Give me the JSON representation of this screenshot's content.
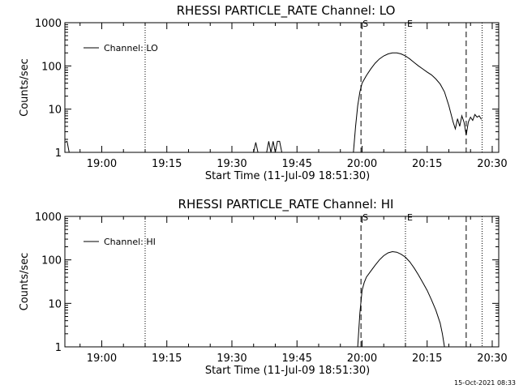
{
  "colors": {
    "background": "#ffffff",
    "foreground": "#000000"
  },
  "chart_data": [
    {
      "type": "line",
      "title": "RHESSI PARTICLE_RATE Channel: LO",
      "xlabel": "Start Time (11-Jul-09 18:51:30)",
      "ylabel": "Counts/sec",
      "yscale": "log",
      "ylim": [
        1,
        1000
      ],
      "x_ticks": [
        "19:00",
        "19:15",
        "19:30",
        "19:45",
        "20:00",
        "20:15",
        "20:30"
      ],
      "y_ticks": [
        "1",
        "10",
        "100",
        "1000"
      ],
      "legend": "Channel: LO",
      "legend_position": "top-left",
      "markers": [
        {
          "label": "S",
          "time": "19:59:45",
          "style": "dashed"
        },
        {
          "label": "E",
          "time": "20:10:00",
          "style": "dotted"
        }
      ],
      "vlines_dashed": [
        "20:24:00"
      ],
      "vlines_dotted": [
        "19:10:00",
        "20:10:00",
        "20:27:40"
      ],
      "series": [
        {
          "name": "Channel: LO",
          "points": [
            [
              "18:51:30",
              1.7
            ],
            [
              "18:52:00",
              1.8
            ],
            [
              "18:52:30",
              1.0
            ],
            [
              "19:35:00",
              1.0
            ],
            [
              "19:35:30",
              1.7
            ],
            [
              "19:36:00",
              1.0
            ],
            [
              "19:38:00",
              1.0
            ],
            [
              "19:38:30",
              1.8
            ],
            [
              "19:39:00",
              1.0
            ],
            [
              "19:39:30",
              1.8
            ],
            [
              "19:40:00",
              1.0
            ],
            [
              "19:40:30",
              1.8
            ],
            [
              "19:41:00",
              1.8
            ],
            [
              "19:41:30",
              1.0
            ],
            [
              "19:58:00",
              1.0
            ],
            [
              "19:58:30",
              4
            ],
            [
              "19:59:00",
              12
            ],
            [
              "19:59:30",
              25
            ],
            [
              "20:00:00",
              40
            ],
            [
              "20:01:00",
              60
            ],
            [
              "20:02:00",
              85
            ],
            [
              "20:03:00",
              115
            ],
            [
              "20:04:00",
              145
            ],
            [
              "20:05:00",
              170
            ],
            [
              "20:06:00",
              190
            ],
            [
              "20:07:00",
              200
            ],
            [
              "20:08:00",
              200
            ],
            [
              "20:09:00",
              190
            ],
            [
              "20:10:00",
              170
            ],
            [
              "20:11:00",
              145
            ],
            [
              "20:12:00",
              120
            ],
            [
              "20:13:00",
              100
            ],
            [
              "20:14:00",
              85
            ],
            [
              "20:15:00",
              72
            ],
            [
              "20:16:00",
              62
            ],
            [
              "20:17:00",
              50
            ],
            [
              "20:18:00",
              38
            ],
            [
              "20:19:00",
              25
            ],
            [
              "20:20:00",
              12
            ],
            [
              "20:21:00",
              5
            ],
            [
              "20:21:30",
              3.5
            ],
            [
              "20:22:00",
              6
            ],
            [
              "20:22:30",
              4
            ],
            [
              "20:23:00",
              7
            ],
            [
              "20:23:30",
              5
            ],
            [
              "20:24:00",
              2.5
            ],
            [
              "20:24:30",
              5
            ],
            [
              "20:25:00",
              6.5
            ],
            [
              "20:25:30",
              5.5
            ],
            [
              "20:26:00",
              7.5
            ],
            [
              "20:26:30",
              6.5
            ],
            [
              "20:27:00",
              7
            ],
            [
              "20:27:30",
              5.8
            ]
          ]
        }
      ]
    },
    {
      "type": "line",
      "title": "RHESSI PARTICLE_RATE Channel: HI",
      "xlabel": "Start Time (11-Jul-09 18:51:30)",
      "ylabel": "Counts/sec",
      "yscale": "log",
      "ylim": [
        1,
        1000
      ],
      "x_ticks": [
        "19:00",
        "19:15",
        "19:30",
        "19:45",
        "20:00",
        "20:15",
        "20:30"
      ],
      "y_ticks": [
        "1",
        "10",
        "100",
        "1000"
      ],
      "legend": "Channel: HI",
      "legend_position": "top-left",
      "markers": [
        {
          "label": "S",
          "time": "19:59:45",
          "style": "dashed"
        },
        {
          "label": "E",
          "time": "20:10:00",
          "style": "dotted"
        }
      ],
      "vlines_dashed": [
        "20:24:00"
      ],
      "vlines_dotted": [
        "19:10:00",
        "20:10:00",
        "20:27:40"
      ],
      "series": [
        {
          "name": "Channel: HI",
          "points": [
            [
              "19:59:00",
              1.0
            ],
            [
              "19:59:30",
              6
            ],
            [
              "20:00:00",
              20
            ],
            [
              "20:00:30",
              30
            ],
            [
              "20:01:00",
              40
            ],
            [
              "20:02:00",
              55
            ],
            [
              "20:03:00",
              75
            ],
            [
              "20:04:00",
              100
            ],
            [
              "20:05:00",
              125
            ],
            [
              "20:06:00",
              145
            ],
            [
              "20:07:00",
              155
            ],
            [
              "20:08:00",
              150
            ],
            [
              "20:09:00",
              135
            ],
            [
              "20:10:00",
              115
            ],
            [
              "20:11:00",
              90
            ],
            [
              "20:12:00",
              65
            ],
            [
              "20:13:00",
              45
            ],
            [
              "20:14:00",
              30
            ],
            [
              "20:15:00",
              20
            ],
            [
              "20:16:00",
              12
            ],
            [
              "20:17:00",
              7
            ],
            [
              "20:18:00",
              3.5
            ],
            [
              "20:18:30",
              2
            ],
            [
              "20:19:00",
              1.0
            ]
          ]
        }
      ]
    }
  ],
  "footer": {
    "timestamp": "15-Oct-2021 08:33"
  }
}
